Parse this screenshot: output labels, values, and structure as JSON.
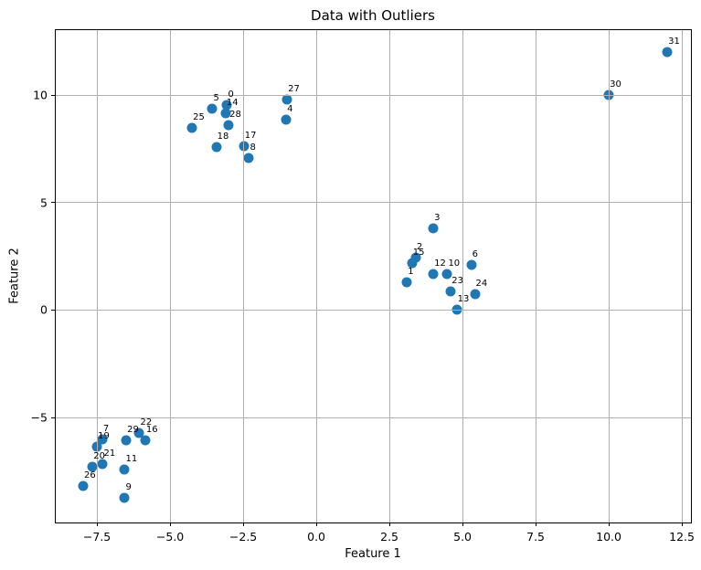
{
  "figure": {
    "title": "Data with Outliers",
    "xlabel": "Feature 1",
    "ylabel": "Feature 2"
  },
  "chart_data": {
    "type": "scatter",
    "title": "Data with Outliers",
    "xlabel": "Feature 1",
    "ylabel": "Feature 2",
    "xlim": [
      -8.94,
      12.81
    ],
    "ylim": [
      -9.89,
      13.08
    ],
    "grid": true,
    "grid_color": "#b0b0b0",
    "grid_above_points": true,
    "marker_color": "#1f77b4",
    "x_ticks": [
      {
        "value": -7.5,
        "label": "−7.5"
      },
      {
        "value": -5.0,
        "label": "−5.0"
      },
      {
        "value": -2.5,
        "label": "−2.5"
      },
      {
        "value": 0.0,
        "label": "0.0"
      },
      {
        "value": 2.5,
        "label": "2.5"
      },
      {
        "value": 5.0,
        "label": "5.0"
      },
      {
        "value": 7.5,
        "label": "7.5"
      },
      {
        "value": 10.0,
        "label": "10.0"
      },
      {
        "value": 12.5,
        "label": "12.5"
      }
    ],
    "y_ticks": [
      {
        "value": -5,
        "label": "−5"
      },
      {
        "value": 0,
        "label": "0"
      },
      {
        "value": 5,
        "label": "5"
      },
      {
        "value": 10,
        "label": "10"
      }
    ],
    "points": [
      {
        "label": "0",
        "x": -3.05,
        "y": 9.55
      },
      {
        "label": "1",
        "x": 3.1,
        "y": 1.3
      },
      {
        "label": "2",
        "x": 3.4,
        "y": 2.45
      },
      {
        "label": "3",
        "x": 4.0,
        "y": 3.8
      },
      {
        "label": "4",
        "x": -1.03,
        "y": 8.85
      },
      {
        "label": "5",
        "x": -3.55,
        "y": 9.4
      },
      {
        "label": "6",
        "x": 5.3,
        "y": 2.12
      },
      {
        "label": "7",
        "x": -7.32,
        "y": -6.0
      },
      {
        "label": "8",
        "x": -2.3,
        "y": 7.1
      },
      {
        "label": "9",
        "x": -6.55,
        "y": -8.75
      },
      {
        "label": "10",
        "x": 4.48,
        "y": 1.68
      },
      {
        "label": "11",
        "x": -6.55,
        "y": -7.42
      },
      {
        "label": "12",
        "x": 4.0,
        "y": 1.66
      },
      {
        "label": "13",
        "x": 4.8,
        "y": 0.02
      },
      {
        "label": "14",
        "x": -3.1,
        "y": 9.18
      },
      {
        "label": "15",
        "x": 3.27,
        "y": 2.2
      },
      {
        "label": "16",
        "x": -5.85,
        "y": -6.08
      },
      {
        "label": "17",
        "x": -2.48,
        "y": 7.62
      },
      {
        "label": "18",
        "x": -3.42,
        "y": 7.58
      },
      {
        "label": "19",
        "x": -7.5,
        "y": -6.35
      },
      {
        "label": "20",
        "x": -7.65,
        "y": -7.28
      },
      {
        "label": "21",
        "x": -7.3,
        "y": -7.15
      },
      {
        "label": "22",
        "x": -6.05,
        "y": -5.74
      },
      {
        "label": "23",
        "x": 4.6,
        "y": 0.88
      },
      {
        "label": "24",
        "x": 5.42,
        "y": 0.76
      },
      {
        "label": "25",
        "x": -4.25,
        "y": 8.5
      },
      {
        "label": "26",
        "x": -7.97,
        "y": -8.2
      },
      {
        "label": "27",
        "x": -1.0,
        "y": 9.8
      },
      {
        "label": "28",
        "x": -3.0,
        "y": 8.6
      },
      {
        "label": "29",
        "x": -6.5,
        "y": -6.05
      },
      {
        "label": "30",
        "x": 10.0,
        "y": 10.0
      },
      {
        "label": "31",
        "x": 12.0,
        "y": 12.0
      }
    ]
  }
}
